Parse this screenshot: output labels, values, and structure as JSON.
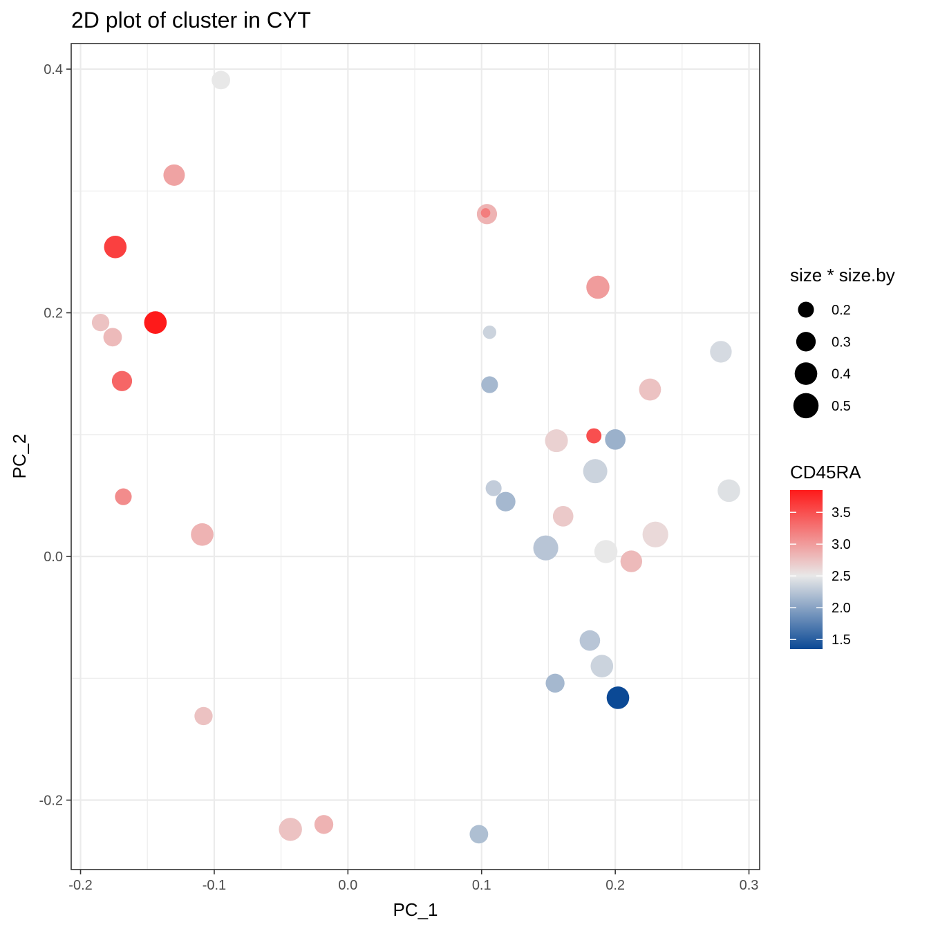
{
  "chart_data": {
    "type": "scatter",
    "title": "2D plot of cluster in CYT",
    "xlabel": "PC_1",
    "ylabel": "PC_2",
    "xlim": [
      -0.207,
      0.308
    ],
    "ylim": [
      -0.257,
      0.421
    ],
    "x_ticks": [
      -0.2,
      -0.1,
      0.0,
      0.1,
      0.2,
      0.3
    ],
    "x_tick_labels": [
      "-0.2",
      "-0.1",
      "0.0",
      "0.1",
      "0.2",
      "0.3"
    ],
    "y_ticks": [
      -0.2,
      0.0,
      0.2,
      0.4
    ],
    "y_tick_labels": [
      "-0.2",
      "0.0",
      "0.2",
      "0.4"
    ],
    "grid": true,
    "legend_position": "right",
    "size_legend": {
      "title": "size * size.by",
      "entries": [
        {
          "label": "0.2",
          "value": 0.2
        },
        {
          "label": "0.3",
          "value": 0.3
        },
        {
          "label": "0.4",
          "value": 0.4
        },
        {
          "label": "0.5",
          "value": 0.5
        }
      ]
    },
    "color_legend": {
      "title": "CD45RA",
      "range": [
        1.35,
        3.85
      ],
      "ticks": [
        3.5,
        3.0,
        2.5,
        2.0,
        1.5
      ],
      "tick_labels": [
        "3.5",
        "3.0",
        "2.5",
        "2.0",
        "1.5"
      ],
      "colors": {
        "low": "#0b4995",
        "mid": "#e8e8e8",
        "high": "#fe1a1a"
      }
    },
    "points": [
      {
        "x": -0.095,
        "y": 0.391,
        "size": 0.27,
        "cd45ra": 2.5
      },
      {
        "x": -0.13,
        "y": 0.313,
        "size": 0.36,
        "cd45ra": 2.95
      },
      {
        "x": -0.174,
        "y": 0.254,
        "size": 0.4,
        "cd45ra": 3.6
      },
      {
        "x": -0.144,
        "y": 0.192,
        "size": 0.4,
        "cd45ra": 3.85
      },
      {
        "x": -0.185,
        "y": 0.192,
        "size": 0.24,
        "cd45ra": 2.75
      },
      {
        "x": -0.176,
        "y": 0.18,
        "size": 0.27,
        "cd45ra": 2.8
      },
      {
        "x": -0.169,
        "y": 0.144,
        "size": 0.32,
        "cd45ra": 3.35
      },
      {
        "x": -0.168,
        "y": 0.049,
        "size": 0.22,
        "cd45ra": 3.1
      },
      {
        "x": -0.109,
        "y": 0.018,
        "size": 0.4,
        "cd45ra": 2.85
      },
      {
        "x": -0.108,
        "y": -0.131,
        "size": 0.26,
        "cd45ra": 2.75
      },
      {
        "x": -0.043,
        "y": -0.224,
        "size": 0.42,
        "cd45ra": 2.75
      },
      {
        "x": -0.018,
        "y": -0.22,
        "size": 0.28,
        "cd45ra": 2.85
      },
      {
        "x": 0.098,
        "y": -0.228,
        "size": 0.27,
        "cd45ra": 2.2
      },
      {
        "x": 0.104,
        "y": 0.281,
        "size": 0.32,
        "cd45ra": 2.85
      },
      {
        "x": 0.103,
        "y": 0.282,
        "size": 0.07,
        "cd45ra": 3.2
      },
      {
        "x": 0.106,
        "y": 0.184,
        "size": 0.14,
        "cd45ra": 2.35
      },
      {
        "x": 0.106,
        "y": 0.141,
        "size": 0.22,
        "cd45ra": 2.15
      },
      {
        "x": 0.109,
        "y": 0.056,
        "size": 0.2,
        "cd45ra": 2.3
      },
      {
        "x": 0.118,
        "y": 0.045,
        "size": 0.3,
        "cd45ra": 2.15
      },
      {
        "x": 0.156,
        "y": 0.095,
        "size": 0.41,
        "cd45ra": 2.65
      },
      {
        "x": 0.161,
        "y": 0.033,
        "size": 0.33,
        "cd45ra": 2.7
      },
      {
        "x": 0.148,
        "y": 0.007,
        "size": 0.49,
        "cd45ra": 2.25
      },
      {
        "x": 0.187,
        "y": 0.221,
        "size": 0.42,
        "cd45ra": 3.0
      },
      {
        "x": 0.184,
        "y": 0.099,
        "size": 0.18,
        "cd45ra": 3.5
      },
      {
        "x": 0.2,
        "y": 0.096,
        "size": 0.33,
        "cd45ra": 2.1
      },
      {
        "x": 0.185,
        "y": 0.07,
        "size": 0.46,
        "cd45ra": 2.35
      },
      {
        "x": 0.193,
        "y": 0.004,
        "size": 0.42,
        "cd45ra": 2.5
      },
      {
        "x": 0.212,
        "y": -0.004,
        "size": 0.37,
        "cd45ra": 2.8
      },
      {
        "x": 0.226,
        "y": 0.137,
        "size": 0.38,
        "cd45ra": 2.75
      },
      {
        "x": 0.23,
        "y": 0.018,
        "size": 0.52,
        "cd45ra": 2.6
      },
      {
        "x": 0.279,
        "y": 0.168,
        "size": 0.37,
        "cd45ra": 2.4
      },
      {
        "x": 0.285,
        "y": 0.054,
        "size": 0.4,
        "cd45ra": 2.45
      },
      {
        "x": 0.181,
        "y": -0.069,
        "size": 0.33,
        "cd45ra": 2.25
      },
      {
        "x": 0.19,
        "y": -0.09,
        "size": 0.4,
        "cd45ra": 2.35
      },
      {
        "x": 0.155,
        "y": -0.104,
        "size": 0.28,
        "cd45ra": 2.15
      },
      {
        "x": 0.202,
        "y": -0.116,
        "size": 0.4,
        "cd45ra": 1.35
      }
    ]
  }
}
